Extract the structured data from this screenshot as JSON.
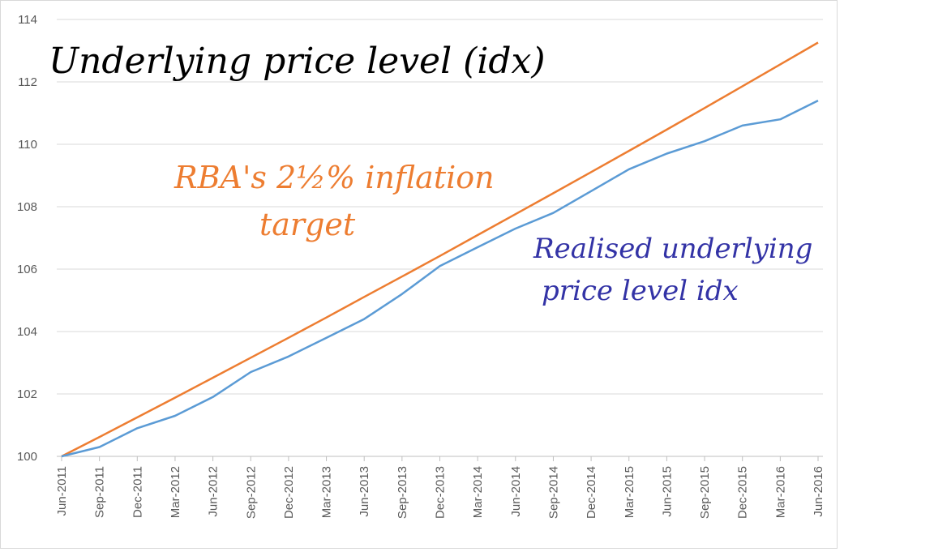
{
  "chart_data": {
    "type": "line",
    "title": "Underlying price level (idx)",
    "xlabel": "",
    "ylabel": "",
    "ylim": [
      100,
      114
    ],
    "yticks": [
      100,
      102,
      104,
      106,
      108,
      110,
      112,
      114
    ],
    "grid": true,
    "x": [
      "Jun-2011",
      "Sep-2011",
      "Dec-2011",
      "Mar-2012",
      "Jun-2012",
      "Sep-2012",
      "Dec-2012",
      "Mar-2013",
      "Jun-2013",
      "Sep-2013",
      "Dec-2013",
      "Mar-2014",
      "Jun-2014",
      "Sep-2014",
      "Dec-2014",
      "Mar-2015",
      "Jun-2015",
      "Sep-2015",
      "Dec-2015",
      "Mar-2016",
      "Jun-2016"
    ],
    "series": [
      {
        "name": "RBA's 2½% inflation target",
        "color": "#ED7D31",
        "values": [
          100.0,
          100.62,
          101.25,
          101.88,
          102.52,
          103.16,
          103.8,
          104.45,
          105.11,
          105.76,
          106.42,
          107.09,
          107.76,
          108.43,
          109.11,
          109.79,
          110.47,
          111.16,
          111.86,
          112.56,
          113.26
        ]
      },
      {
        "name": "Realised underlying price level idx",
        "color": "#5B9BD5",
        "values": [
          100.0,
          100.3,
          100.9,
          101.3,
          101.9,
          102.7,
          103.2,
          103.8,
          104.4,
          105.2,
          106.1,
          106.7,
          107.3,
          107.8,
          108.5,
          109.2,
          109.7,
          110.1,
          110.6,
          110.8,
          111.4
        ]
      }
    ],
    "annotations": {
      "target": [
        "RBA's 2½% inflation",
        "target"
      ],
      "realised": [
        "Realised underlying",
        "price level idx"
      ]
    }
  }
}
